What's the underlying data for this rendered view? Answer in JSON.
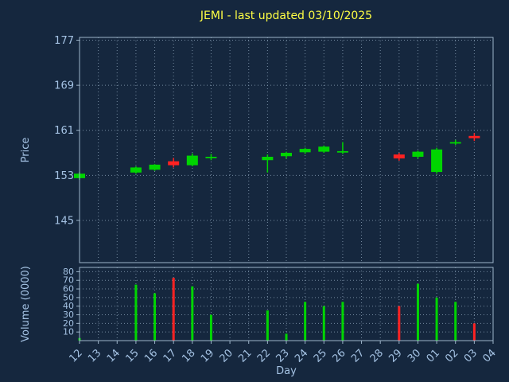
{
  "chart_data": {
    "type": "candlestick",
    "title": "JEMI - last updated 03/10/2025",
    "xlabel": "Day",
    "ylabel_price": "Price",
    "ylabel_volume": "Volume (0000)",
    "grid": "dotted",
    "x_categories": [
      "12",
      "13",
      "14",
      "15",
      "16",
      "17",
      "18",
      "19",
      "20",
      "21",
      "22",
      "23",
      "24",
      "25",
      "26",
      "27",
      "28",
      "29",
      "30",
      "01",
      "02",
      "03",
      "04"
    ],
    "price_axis": {
      "ticks": [
        145,
        153,
        161,
        169,
        177
      ],
      "lim": [
        137.5,
        177.5
      ]
    },
    "volume_axis": {
      "ticks": [
        10,
        20,
        30,
        40,
        50,
        60,
        70,
        80
      ],
      "lim": [
        0,
        85
      ]
    },
    "candles": [
      {
        "day": "12",
        "open": 152.5,
        "high": 153.6,
        "low": 152.2,
        "close": 153.3,
        "volume": 3
      },
      {
        "day": "15",
        "open": 153.5,
        "high": 154.6,
        "low": 153.3,
        "close": 154.4,
        "volume": 65
      },
      {
        "day": "16",
        "open": 154.0,
        "high": 155.0,
        "low": 153.8,
        "close": 154.9,
        "volume": 55
      },
      {
        "day": "17",
        "open": 155.5,
        "high": 156.1,
        "low": 154.4,
        "close": 154.8,
        "volume": 73
      },
      {
        "day": "18",
        "open": 154.8,
        "high": 156.9,
        "low": 154.6,
        "close": 156.5,
        "volume": 63
      },
      {
        "day": "19",
        "open": 156.2,
        "high": 156.8,
        "low": 155.7,
        "close": 156.3,
        "volume": 30
      },
      {
        "day": "22",
        "open": 155.7,
        "high": 156.7,
        "low": 153.5,
        "close": 156.3,
        "volume": 35
      },
      {
        "day": "23",
        "open": 156.4,
        "high": 157.2,
        "low": 156.0,
        "close": 157.0,
        "volume": 8
      },
      {
        "day": "24",
        "open": 157.1,
        "high": 157.9,
        "low": 156.8,
        "close": 157.7,
        "volume": 45
      },
      {
        "day": "25",
        "open": 157.2,
        "high": 158.3,
        "low": 157.0,
        "close": 158.1,
        "volume": 40
      },
      {
        "day": "26",
        "open": 157.2,
        "high": 158.9,
        "low": 156.8,
        "close": 157.3,
        "volume": 45
      },
      {
        "day": "29",
        "open": 156.7,
        "high": 157.0,
        "low": 155.6,
        "close": 156.0,
        "volume": 40
      },
      {
        "day": "30",
        "open": 156.3,
        "high": 157.4,
        "low": 156.0,
        "close": 157.2,
        "volume": 66
      },
      {
        "day": "01",
        "open": 153.6,
        "high": 157.9,
        "low": 153.3,
        "close": 157.6,
        "volume": 50
      },
      {
        "day": "02",
        "open": 158.7,
        "high": 159.3,
        "low": 158.4,
        "close": 158.9,
        "volume": 45
      },
      {
        "day": "03",
        "open": 160.0,
        "high": 160.5,
        "low": 159.1,
        "close": 159.6,
        "volume": 20
      }
    ],
    "colors": {
      "background": "#15273e",
      "grid": "#7e94aa",
      "spine": "#9db4c9",
      "tick_label": "#a4c2e3",
      "axis_label": "#a4c2e3",
      "title": "#ffff44",
      "up": "#00d500",
      "down": "#ff2222"
    }
  }
}
